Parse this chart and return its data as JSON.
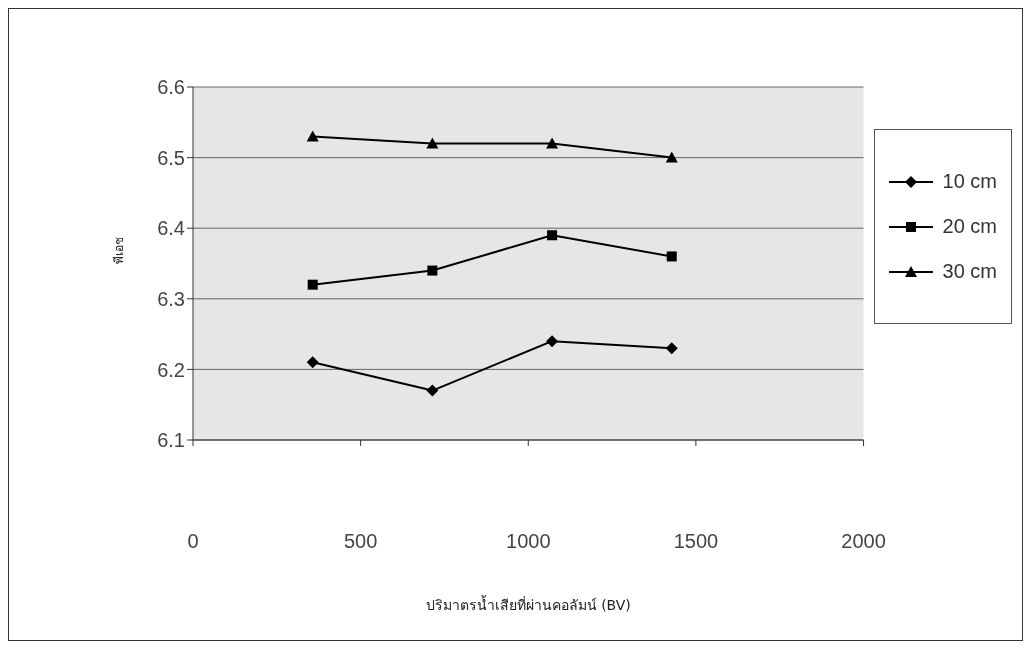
{
  "chart_data": {
    "type": "line",
    "xlabel": "ปริมาตรน้ำเสียที่ผ่านคอลัมน์ (BV)",
    "ylabel": "พีเอช",
    "x": [
      357,
      714,
      1071,
      1428
    ],
    "series": [
      {
        "name": "10 cm",
        "color": "#000000",
        "marker": "diamond",
        "values": [
          6.21,
          6.17,
          6.24,
          6.23
        ]
      },
      {
        "name": "20 cm",
        "color": "#000000",
        "marker": "square",
        "values": [
          6.32,
          6.34,
          6.39,
          6.36
        ]
      },
      {
        "name": "30 cm",
        "color": "#000000",
        "marker": "triangle",
        "values": [
          6.53,
          6.52,
          6.52,
          6.5
        ]
      }
    ],
    "xlim": [
      0,
      2000
    ],
    "xticks": [
      0,
      500,
      1000,
      1500,
      2000
    ],
    "ylim": [
      6.1,
      6.6
    ],
    "yticks": [
      6.1,
      6.2,
      6.3,
      6.4,
      6.5,
      6.6
    ],
    "grid": "y",
    "legend": "right"
  }
}
